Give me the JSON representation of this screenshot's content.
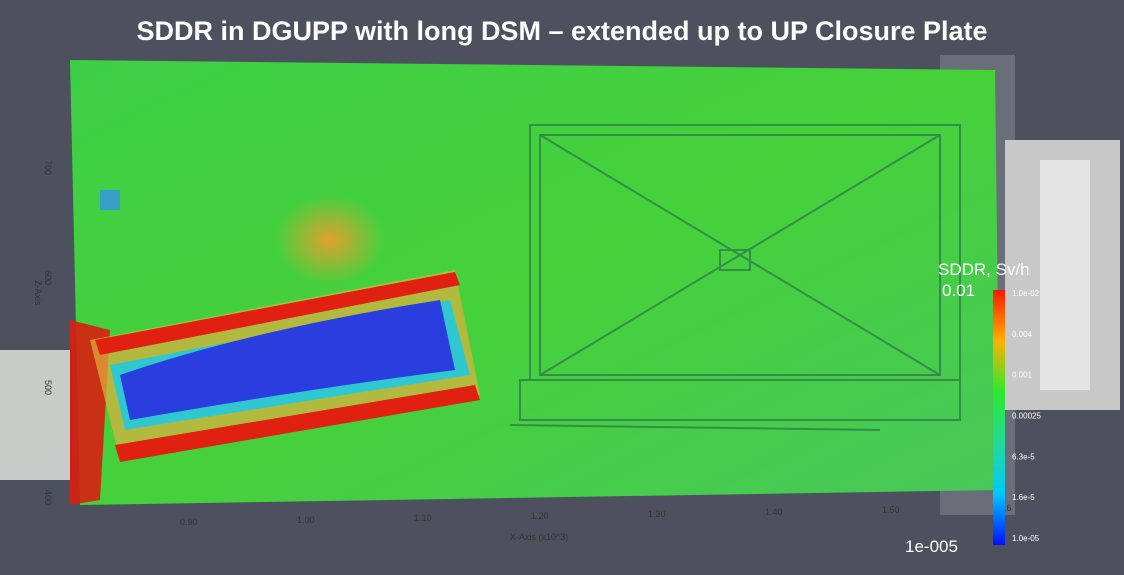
{
  "header": {
    "title": "SDDR in DGUPP with long DSM – extended up to UP Closure Plate"
  },
  "x_axis": {
    "title": "X-Axis (x10^3)",
    "ticks": [
      "0.90",
      "1.00",
      "1.10",
      "1.20",
      "1.30",
      "1.40",
      "1.50",
      "1.6"
    ]
  },
  "z_axis": {
    "title": "Z-Axis",
    "ticks": [
      "700",
      "600",
      "500",
      "400"
    ]
  },
  "colorbar": {
    "title": "SDDR, Sv/h",
    "max": "0.01",
    "min": "1e-005",
    "labels": [
      "1.0e-02",
      "0.004",
      "0.001",
      "0.00025",
      "6.3e-5",
      "1.6e-5",
      "1.0e-05"
    ]
  }
}
